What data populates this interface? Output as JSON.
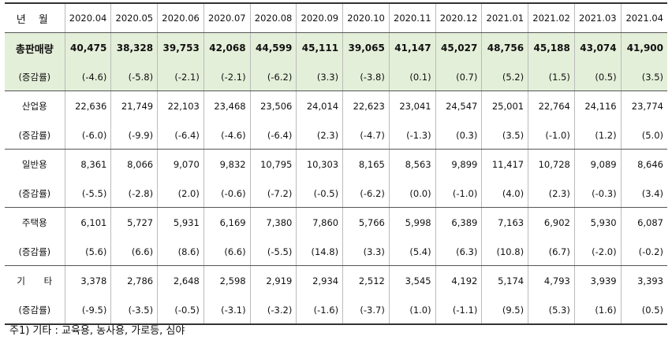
{
  "header": {
    "corner": "년 월",
    "months": [
      "2020.04",
      "2020.05",
      "2020.06",
      "2020.07",
      "2020.08",
      "2020.09",
      "2020.10",
      "2020.11",
      "2020.12",
      "2021.01",
      "2021.02",
      "2021.03",
      "2021.04"
    ]
  },
  "rows": [
    {
      "label": "총판매량",
      "values": [
        "40,475",
        "38,328",
        "39,753",
        "42,068",
        "44,599",
        "45,111",
        "39,065",
        "41,147",
        "45,027",
        "48,756",
        "45,188",
        "43,074",
        "41,900"
      ],
      "rate_label": "(증감률)",
      "rates": [
        "(-4.6)",
        "(-5.8)",
        "(-2.1)",
        "(-2.1)",
        "(-6.2)",
        "(3.3)",
        "(-3.8)",
        "(0.1)",
        "(0.7)",
        "(5.2)",
        "(1.5)",
        "(0.5)",
        "(3.5)"
      ]
    },
    {
      "label": "산업용",
      "values": [
        "22,636",
        "21,749",
        "22,103",
        "23,468",
        "23,506",
        "24,014",
        "22,623",
        "23,041",
        "24,547",
        "25,001",
        "22,764",
        "24,116",
        "23,774"
      ],
      "rate_label": "(증감률)",
      "rates": [
        "(-6.0)",
        "(-9.9)",
        "(-6.4)",
        "(-4.6)",
        "(-6.4)",
        "(2.3)",
        "(-4.7)",
        "(-1.3)",
        "(0.3)",
        "(3.5)",
        "(-1.0)",
        "(1.2)",
        "(5.0)"
      ]
    },
    {
      "label": "일반용",
      "values": [
        "8,361",
        "8,066",
        "9,070",
        "9,832",
        "10,795",
        "10,303",
        "8,165",
        "8,563",
        "9,899",
        "11,417",
        "10,728",
        "9,089",
        "8,646"
      ],
      "rate_label": "(증감률)",
      "rates": [
        "(-5.5)",
        "(-2.8)",
        "(2.0)",
        "(-0.6)",
        "(-7.2)",
        "(-0.5)",
        "(-6.2)",
        "(0.0)",
        "(-1.0)",
        "(4.0)",
        "(2.3)",
        "(-0.3)",
        "(3.4)"
      ]
    },
    {
      "label": "주택용",
      "values": [
        "6,101",
        "5,727",
        "5,931",
        "6,169",
        "7,380",
        "7,860",
        "5,766",
        "5,998",
        "6,389",
        "7,163",
        "6,902",
        "5,930",
        "6,087"
      ],
      "rate_label": "(증감률)",
      "rates": [
        "(5.6)",
        "(6.6)",
        "(8.6)",
        "(6.6)",
        "(-5.5)",
        "(14.8)",
        "(3.3)",
        "(5.4)",
        "(6.3)",
        "(10.8)",
        "(6.7)",
        "(-2.0)",
        "(-0.2)"
      ]
    },
    {
      "label": "기 타",
      "values": [
        "3,378",
        "2,786",
        "2,648",
        "2,598",
        "2,919",
        "2,934",
        "2,512",
        "3,545",
        "4,192",
        "5,174",
        "4,793",
        "3,939",
        "3,393"
      ],
      "rate_label": "(증감률)",
      "rates": [
        "(-9.5)",
        "(-3.5)",
        "(-0.5)",
        "(-3.1)",
        "(-3.2)",
        "(-1.6)",
        "(-3.7)",
        "(1.0)",
        "(-1.1)",
        "(9.5)",
        "(5.3)",
        "(1.6)",
        "(0.5)"
      ]
    }
  ],
  "footnote": "주1) 기타 : 교육용, 농사용, 가로등, 심야"
}
